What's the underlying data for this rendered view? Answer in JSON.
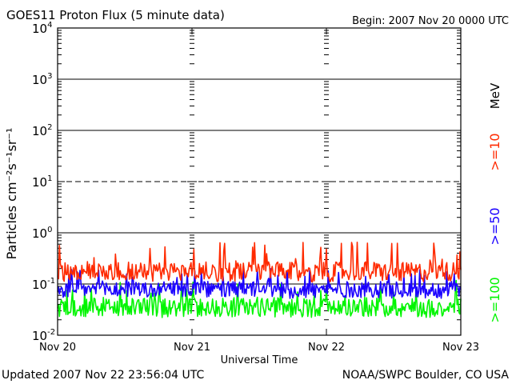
{
  "header": {
    "title": "GOES11 Proton Flux (5 minute data)",
    "begin": "Begin: 2007 Nov 20 0000 UTC"
  },
  "footer": {
    "updated": "Updated 2007 Nov 22 23:56:04 UTC",
    "source": "NOAA/SWPC Boulder, CO USA"
  },
  "chart_data": {
    "type": "line",
    "title": "GOES11 Proton Flux (5 minute data)",
    "xlabel": "Universal Time",
    "ylabel": "Particles cm⁻²s⁻¹sr⁻¹",
    "yscale": "log",
    "ylim": [
      0.01,
      10000
    ],
    "xlim": [
      0,
      72
    ],
    "x_unit": "hours since 2007 Nov 20 0000 UTC",
    "x_ticks": [
      {
        "value": 0,
        "label": "Nov 20"
      },
      {
        "value": 24,
        "label": "Nov 21"
      },
      {
        "value": 48,
        "label": "Nov 22"
      },
      {
        "value": 72,
        "label": "Nov 23"
      }
    ],
    "y_ticks": [
      {
        "value": 0.01,
        "label": "10",
        "exp": "-2"
      },
      {
        "value": 0.1,
        "label": "10",
        "exp": "-1"
      },
      {
        "value": 1,
        "label": "10",
        "exp": "0"
      },
      {
        "value": 10,
        "label": "10",
        "exp": "1"
      },
      {
        "value": 100,
        "label": "10",
        "exp": "2"
      },
      {
        "value": 1000,
        "label": "10",
        "exp": "3"
      },
      {
        "value": 10000,
        "label": "10",
        "exp": "4"
      }
    ],
    "threshold_lines": [
      {
        "value": 0.1,
        "style": "solid"
      },
      {
        "value": 1,
        "style": "solid"
      },
      {
        "value": 10,
        "style": "dashed"
      },
      {
        "value": 100,
        "style": "solid"
      },
      {
        "value": 1000,
        "style": "solid"
      }
    ],
    "legend_unit": "MeV",
    "legend_placement": "right",
    "series": [
      {
        "name": ">=10",
        "color": "#ff2a00",
        "baseline": 0.17,
        "spread": 1.55,
        "spike_max": 0.7,
        "x": [
          0,
          6,
          12,
          18,
          24,
          30,
          36,
          42,
          48,
          54,
          60,
          66,
          72
        ],
        "y": [
          0.17,
          0.18,
          0.18,
          0.17,
          0.18,
          0.17,
          0.18,
          0.17,
          0.17,
          0.18,
          0.17,
          0.17,
          0.18
        ]
      },
      {
        "name": ">=50",
        "color": "#1a00ff",
        "baseline": 0.075,
        "spread": 1.45,
        "spike_max": 0.2,
        "x": [
          0,
          6,
          12,
          18,
          24,
          30,
          36,
          42,
          48,
          54,
          60,
          66,
          72
        ],
        "y": [
          0.075,
          0.08,
          0.078,
          0.076,
          0.08,
          0.077,
          0.08,
          0.075,
          0.076,
          0.078,
          0.077,
          0.075,
          0.078
        ]
      },
      {
        "name": ">=100",
        "color": "#00f500",
        "baseline": 0.035,
        "spread": 1.55,
        "spike_max": 0.12,
        "x": [
          0,
          6,
          12,
          18,
          24,
          30,
          36,
          42,
          48,
          54,
          60,
          66,
          72
        ],
        "y": [
          0.035,
          0.036,
          0.035,
          0.034,
          0.036,
          0.035,
          0.036,
          0.034,
          0.035,
          0.036,
          0.035,
          0.034,
          0.036
        ]
      }
    ]
  }
}
